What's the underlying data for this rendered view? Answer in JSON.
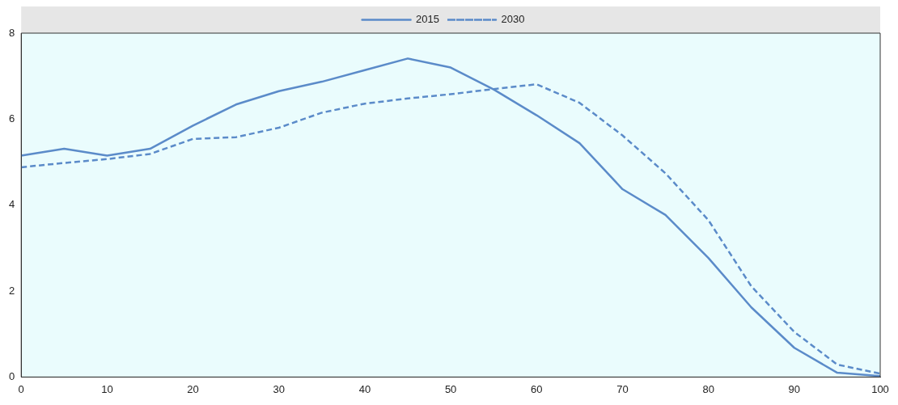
{
  "chart_data": {
    "type": "line",
    "x": [
      0,
      5,
      10,
      15,
      20,
      25,
      30,
      35,
      40,
      45,
      50,
      55,
      60,
      65,
      70,
      75,
      80,
      85,
      90,
      95,
      100
    ],
    "series": [
      {
        "name": "2015",
        "color": "#5b8bc9",
        "line_style": "solid",
        "values": [
          5.15,
          5.31,
          5.15,
          5.31,
          5.85,
          6.34,
          6.65,
          6.87,
          7.14,
          7.41,
          7.2,
          6.69,
          6.09,
          5.44,
          4.37,
          3.77,
          2.77,
          1.62,
          0.68,
          0.1,
          0.02
        ]
      },
      {
        "name": "2030",
        "color": "#5b8bc9",
        "line_style": "dashed",
        "values": [
          4.88,
          4.98,
          5.07,
          5.19,
          5.54,
          5.58,
          5.8,
          6.15,
          6.36,
          6.48,
          6.58,
          6.7,
          6.81,
          6.38,
          5.62,
          4.74,
          3.65,
          2.11,
          1.05,
          0.29,
          0.08
        ]
      }
    ],
    "xlim": [
      0,
      100
    ],
    "xticks": [
      0,
      10,
      20,
      30,
      40,
      50,
      60,
      70,
      80,
      90,
      100
    ],
    "ylim": [
      0,
      8
    ],
    "yticks": [
      0,
      2,
      4,
      6,
      8
    ],
    "grid": false,
    "legend": "top",
    "marker": "none"
  }
}
